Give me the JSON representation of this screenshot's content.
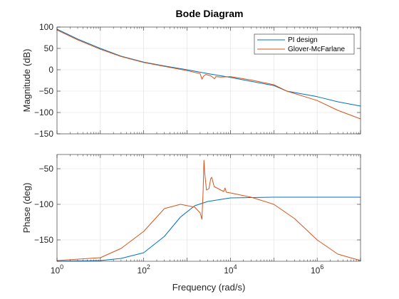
{
  "chart_data": {
    "type": "line",
    "title": "Bode Diagram",
    "xlabel": "Frequency (rad/s)",
    "x_scale": "log",
    "xlim": [
      1,
      10000000
    ],
    "x_ticks": [
      1,
      100,
      10000,
      1000000
    ],
    "x_tick_labels": [
      {
        "base": "10",
        "exp": "0"
      },
      {
        "base": "10",
        "exp": "2"
      },
      {
        "base": "10",
        "exp": "4"
      },
      {
        "base": "10",
        "exp": "6"
      }
    ],
    "grid": true,
    "legend": {
      "placement": "top-right",
      "entries": [
        "PI design",
        "Glover-McFarlane"
      ]
    },
    "colors": {
      "PI design": "#0072BD",
      "Glover-McFarlane": "#D95319"
    },
    "panels": [
      {
        "name": "magnitude",
        "ylabel": "Magnitude (dB)",
        "ylim": [
          -150,
          100
        ],
        "y_ticks": [
          100,
          50,
          0,
          -50,
          -100,
          -150
        ],
        "series": [
          {
            "name": "PI design",
            "points": [
              [
                1,
                95
              ],
              [
                3,
                72
              ],
              [
                10,
                50
              ],
              [
                30,
                32
              ],
              [
                100,
                18
              ],
              [
                300,
                9
              ],
              [
                1000,
                0
              ],
              [
                3000,
                -9
              ],
              [
                10000,
                -18
              ],
              [
                30000,
                -27
              ],
              [
                100000,
                -37
              ],
              [
                200000,
                -50
              ],
              [
                1000000,
                -63
              ],
              [
                3000000,
                -75
              ],
              [
                10000000,
                -85
              ]
            ]
          },
          {
            "name": "Glover-McFarlane",
            "points": [
              [
                1,
                93
              ],
              [
                3,
                70
              ],
              [
                10,
                48
              ],
              [
                30,
                31
              ],
              [
                100,
                17
              ],
              [
                300,
                8
              ],
              [
                1000,
                -2
              ],
              [
                2000,
                -9
              ],
              [
                2200,
                -22
              ],
              [
                2400,
                -15
              ],
              [
                2700,
                -11
              ],
              [
                3500,
                -14
              ],
              [
                4300,
                -21
              ],
              [
                4600,
                -16
              ],
              [
                6000,
                -17
              ],
              [
                10000,
                -16
              ],
              [
                30000,
                -24
              ],
              [
                100000,
                -35
              ],
              [
                200000,
                -50
              ],
              [
                1000000,
                -72
              ],
              [
                3000000,
                -95
              ],
              [
                10000000,
                -115
              ]
            ]
          }
        ]
      },
      {
        "name": "phase",
        "ylabel": "Phase (deg)",
        "ylim": [
          -180,
          -30
        ],
        "y_ticks": [
          -50,
          -100,
          -150
        ],
        "series": [
          {
            "name": "PI design",
            "points": [
              [
                1,
                -180
              ],
              [
                10,
                -179
              ],
              [
                30,
                -176
              ],
              [
                100,
                -168
              ],
              [
                300,
                -145
              ],
              [
                700,
                -118
              ],
              [
                1500,
                -102
              ],
              [
                3000,
                -96
              ],
              [
                10000,
                -91
              ],
              [
                100000,
                -90
              ],
              [
                10000000,
                -90
              ]
            ]
          },
          {
            "name": "Glover-McFarlane",
            "points": [
              [
                1,
                -179
              ],
              [
                10,
                -175
              ],
              [
                30,
                -162
              ],
              [
                100,
                -138
              ],
              [
                300,
                -106
              ],
              [
                700,
                -100
              ],
              [
                1500,
                -104
              ],
              [
                2000,
                -112
              ],
              [
                2200,
                -121
              ],
              [
                2350,
                -80
              ],
              [
                2450,
                -38
              ],
              [
                2550,
                -56
              ],
              [
                2800,
                -80
              ],
              [
                3200,
                -78
              ],
              [
                3500,
                -64
              ],
              [
                3700,
                -62
              ],
              [
                4200,
                -75
              ],
              [
                6000,
                -80
              ],
              [
                7000,
                -82
              ],
              [
                7500,
                -77
              ],
              [
                8000,
                -83
              ],
              [
                10000,
                -84
              ],
              [
                30000,
                -90
              ],
              [
                100000,
                -100
              ],
              [
                300000,
                -120
              ],
              [
                1000000,
                -150
              ],
              [
                3000000,
                -170
              ],
              [
                10000000,
                -179
              ]
            ]
          }
        ]
      }
    ]
  }
}
